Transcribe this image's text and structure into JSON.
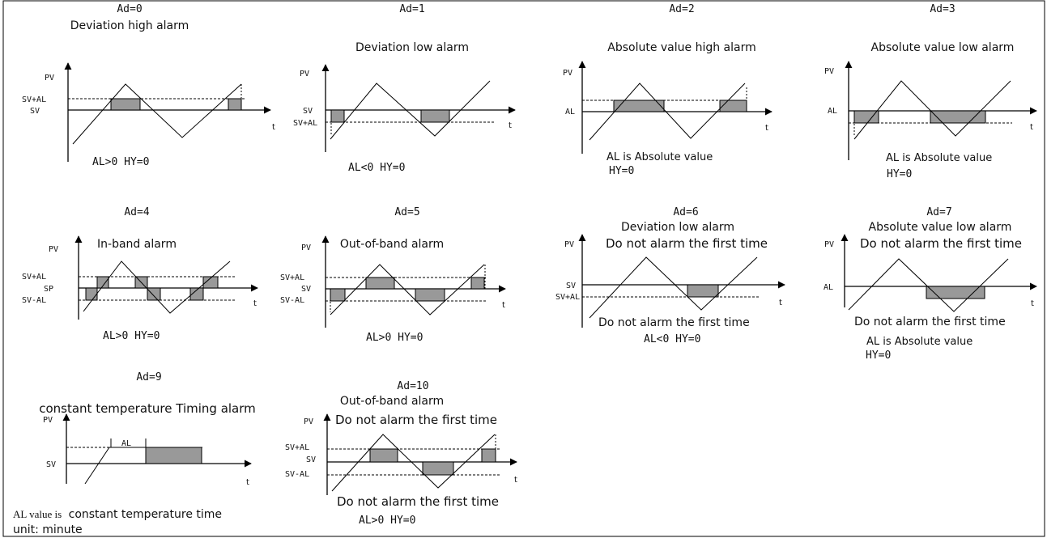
{
  "panels": [
    {
      "id": "ad0",
      "code": "Ad=0",
      "name": "Deviation high alarm",
      "note": "AL>0 HY=0",
      "levels": [
        "SV+AL",
        "SV"
      ],
      "pv": "PV",
      "t": "t"
    },
    {
      "id": "ad1",
      "code": "Ad=1",
      "name": "Deviation low alarm",
      "note": "AL<0 HY=0",
      "levels": [
        "SV",
        "SV+AL"
      ],
      "pv": "PV",
      "t": "t"
    },
    {
      "id": "ad2",
      "code": "Ad=2",
      "name": "Absolute value high alarm",
      "note1": "AL is Absolute value",
      "note2": "HY=0",
      "levels": [
        "AL"
      ],
      "pv": "PV",
      "t": "t"
    },
    {
      "id": "ad3",
      "code": "Ad=3",
      "name": "Absolute value low alarm",
      "note1": "AL is Absolute value",
      "note2": "HY=0",
      "levels": [
        "AL"
      ],
      "pv": "PV",
      "t": "t"
    },
    {
      "id": "ad4",
      "code": "Ad=4",
      "name": "In-band alarm",
      "note": "AL>0 HY=0",
      "levels": [
        "SV+AL",
        "SP",
        "SV-AL"
      ],
      "pv": "PV",
      "t": "t"
    },
    {
      "id": "ad5",
      "code": "Ad=5",
      "name": "Out-of-band alarm",
      "note": "AL>0 HY=0",
      "levels": [
        "SV+AL",
        "SV",
        "SV-AL"
      ],
      "pv": "PV",
      "t": "t"
    },
    {
      "id": "ad6",
      "code": "Ad=6",
      "name": "Deviation low alarm",
      "sub": "Do not alarm the first time",
      "note1": "Do not alarm the first time",
      "note2": "AL<0 HY=0",
      "levels": [
        "SV",
        "SV+AL"
      ],
      "pv": "PV",
      "t": "t"
    },
    {
      "id": "ad7",
      "code": "Ad=7",
      "name": "Absolute value low alarm",
      "sub": "Do not alarm the first time",
      "note1": "Do not alarm the first time",
      "note2": "AL is Absolute value",
      "note3": "HY=0",
      "levels": [
        "AL"
      ],
      "pv": "PV",
      "t": "t"
    },
    {
      "id": "ad9",
      "code": "Ad=9",
      "name": "constant temperature Timing alarm",
      "note1a": "AL value is",
      "note1b": "constant temperature time",
      "note2": "unit: minute",
      "levels": [
        "SV"
      ],
      "inner": "AL",
      "pv": "PV",
      "t": "t"
    },
    {
      "id": "ad10",
      "code": "Ad=10",
      "name": "Out-of-band alarm",
      "sub": "Do not alarm the first time",
      "note1": "Do not alarm the first time",
      "note2": "AL>0 HY=0",
      "levels": [
        "SV+AL",
        "SV",
        "SV-AL"
      ],
      "pv": "PV",
      "t": "t"
    }
  ]
}
